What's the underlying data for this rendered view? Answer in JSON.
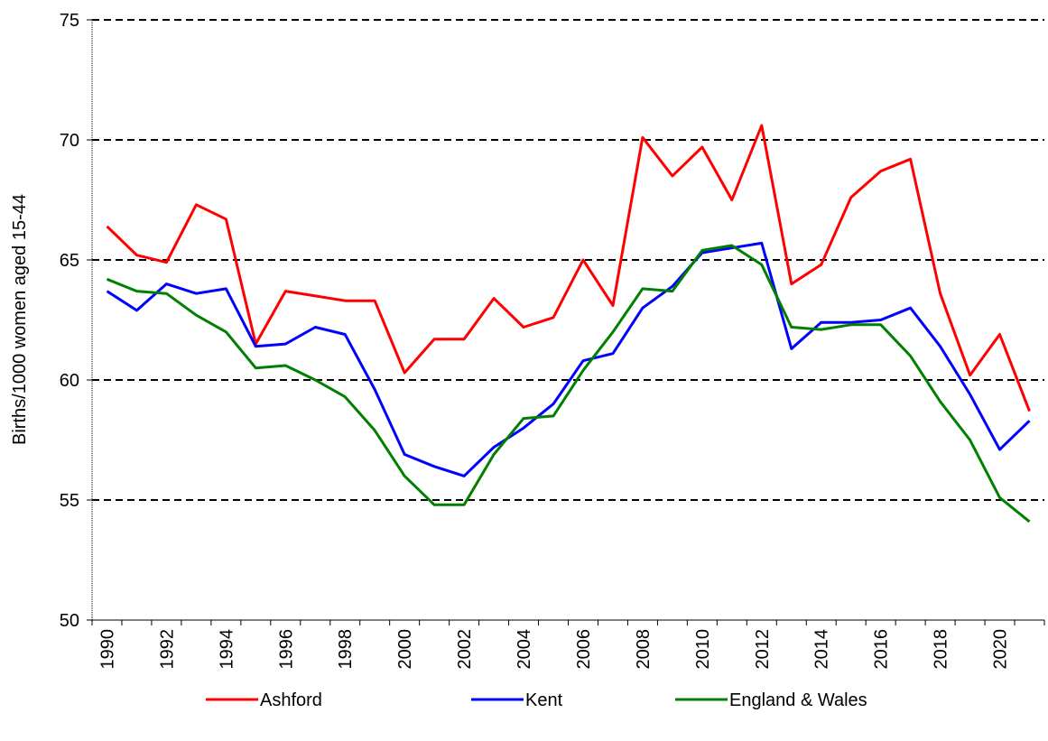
{
  "chart_data": {
    "type": "line",
    "y_label": "Births/1000 women aged 15-44",
    "categories": [
      "1990",
      null,
      "1992",
      null,
      "1994",
      null,
      "1996",
      null,
      "1998",
      null,
      "2000",
      null,
      "2002",
      null,
      "2004",
      null,
      "2006",
      null,
      "2008",
      null,
      "2010",
      null,
      "2012",
      null,
      "2014",
      null,
      "2016",
      null,
      "2018",
      null,
      "2020",
      null
    ],
    "series": [
      {
        "name": "Ashford",
        "color": "#ff0000",
        "values": [
          66.4,
          65.2,
          64.9,
          67.3,
          66.7,
          61.5,
          63.7,
          63.5,
          63.3,
          63.3,
          60.3,
          61.7,
          61.7,
          63.4,
          62.2,
          62.6,
          65.0,
          63.1,
          70.1,
          68.5,
          69.7,
          67.5,
          70.6,
          64.0,
          64.8,
          67.6,
          68.7,
          69.2,
          63.6,
          60.2,
          61.9,
          58.7
        ]
      },
      {
        "name": "Kent",
        "color": "#0000ff",
        "values": [
          63.7,
          62.9,
          64.0,
          63.6,
          63.8,
          61.4,
          61.5,
          62.2,
          61.9,
          59.6,
          56.9,
          56.4,
          56.0,
          57.2,
          58.0,
          59.0,
          60.8,
          61.1,
          63.0,
          63.9,
          65.3,
          65.5,
          65.7,
          61.3,
          62.4,
          62.4,
          62.5,
          63.0,
          61.4,
          59.4,
          57.1,
          58.3
        ]
      },
      {
        "name": "England & Wales",
        "color": "#008000",
        "values": [
          64.2,
          63.7,
          63.6,
          62.7,
          62.0,
          60.5,
          60.6,
          60.0,
          59.3,
          57.9,
          56.0,
          54.8,
          54.8,
          56.9,
          58.4,
          58.5,
          60.4,
          62.0,
          63.8,
          63.7,
          65.4,
          65.6,
          64.8,
          62.2,
          62.1,
          62.3,
          62.3,
          61.0,
          59.1,
          57.5,
          55.1,
          54.1
        ]
      }
    ],
    "ylim": [
      50,
      75
    ],
    "yticks": [
      50,
      55,
      60,
      65,
      70,
      75
    ],
    "grid": true,
    "legend": "bottom"
  }
}
